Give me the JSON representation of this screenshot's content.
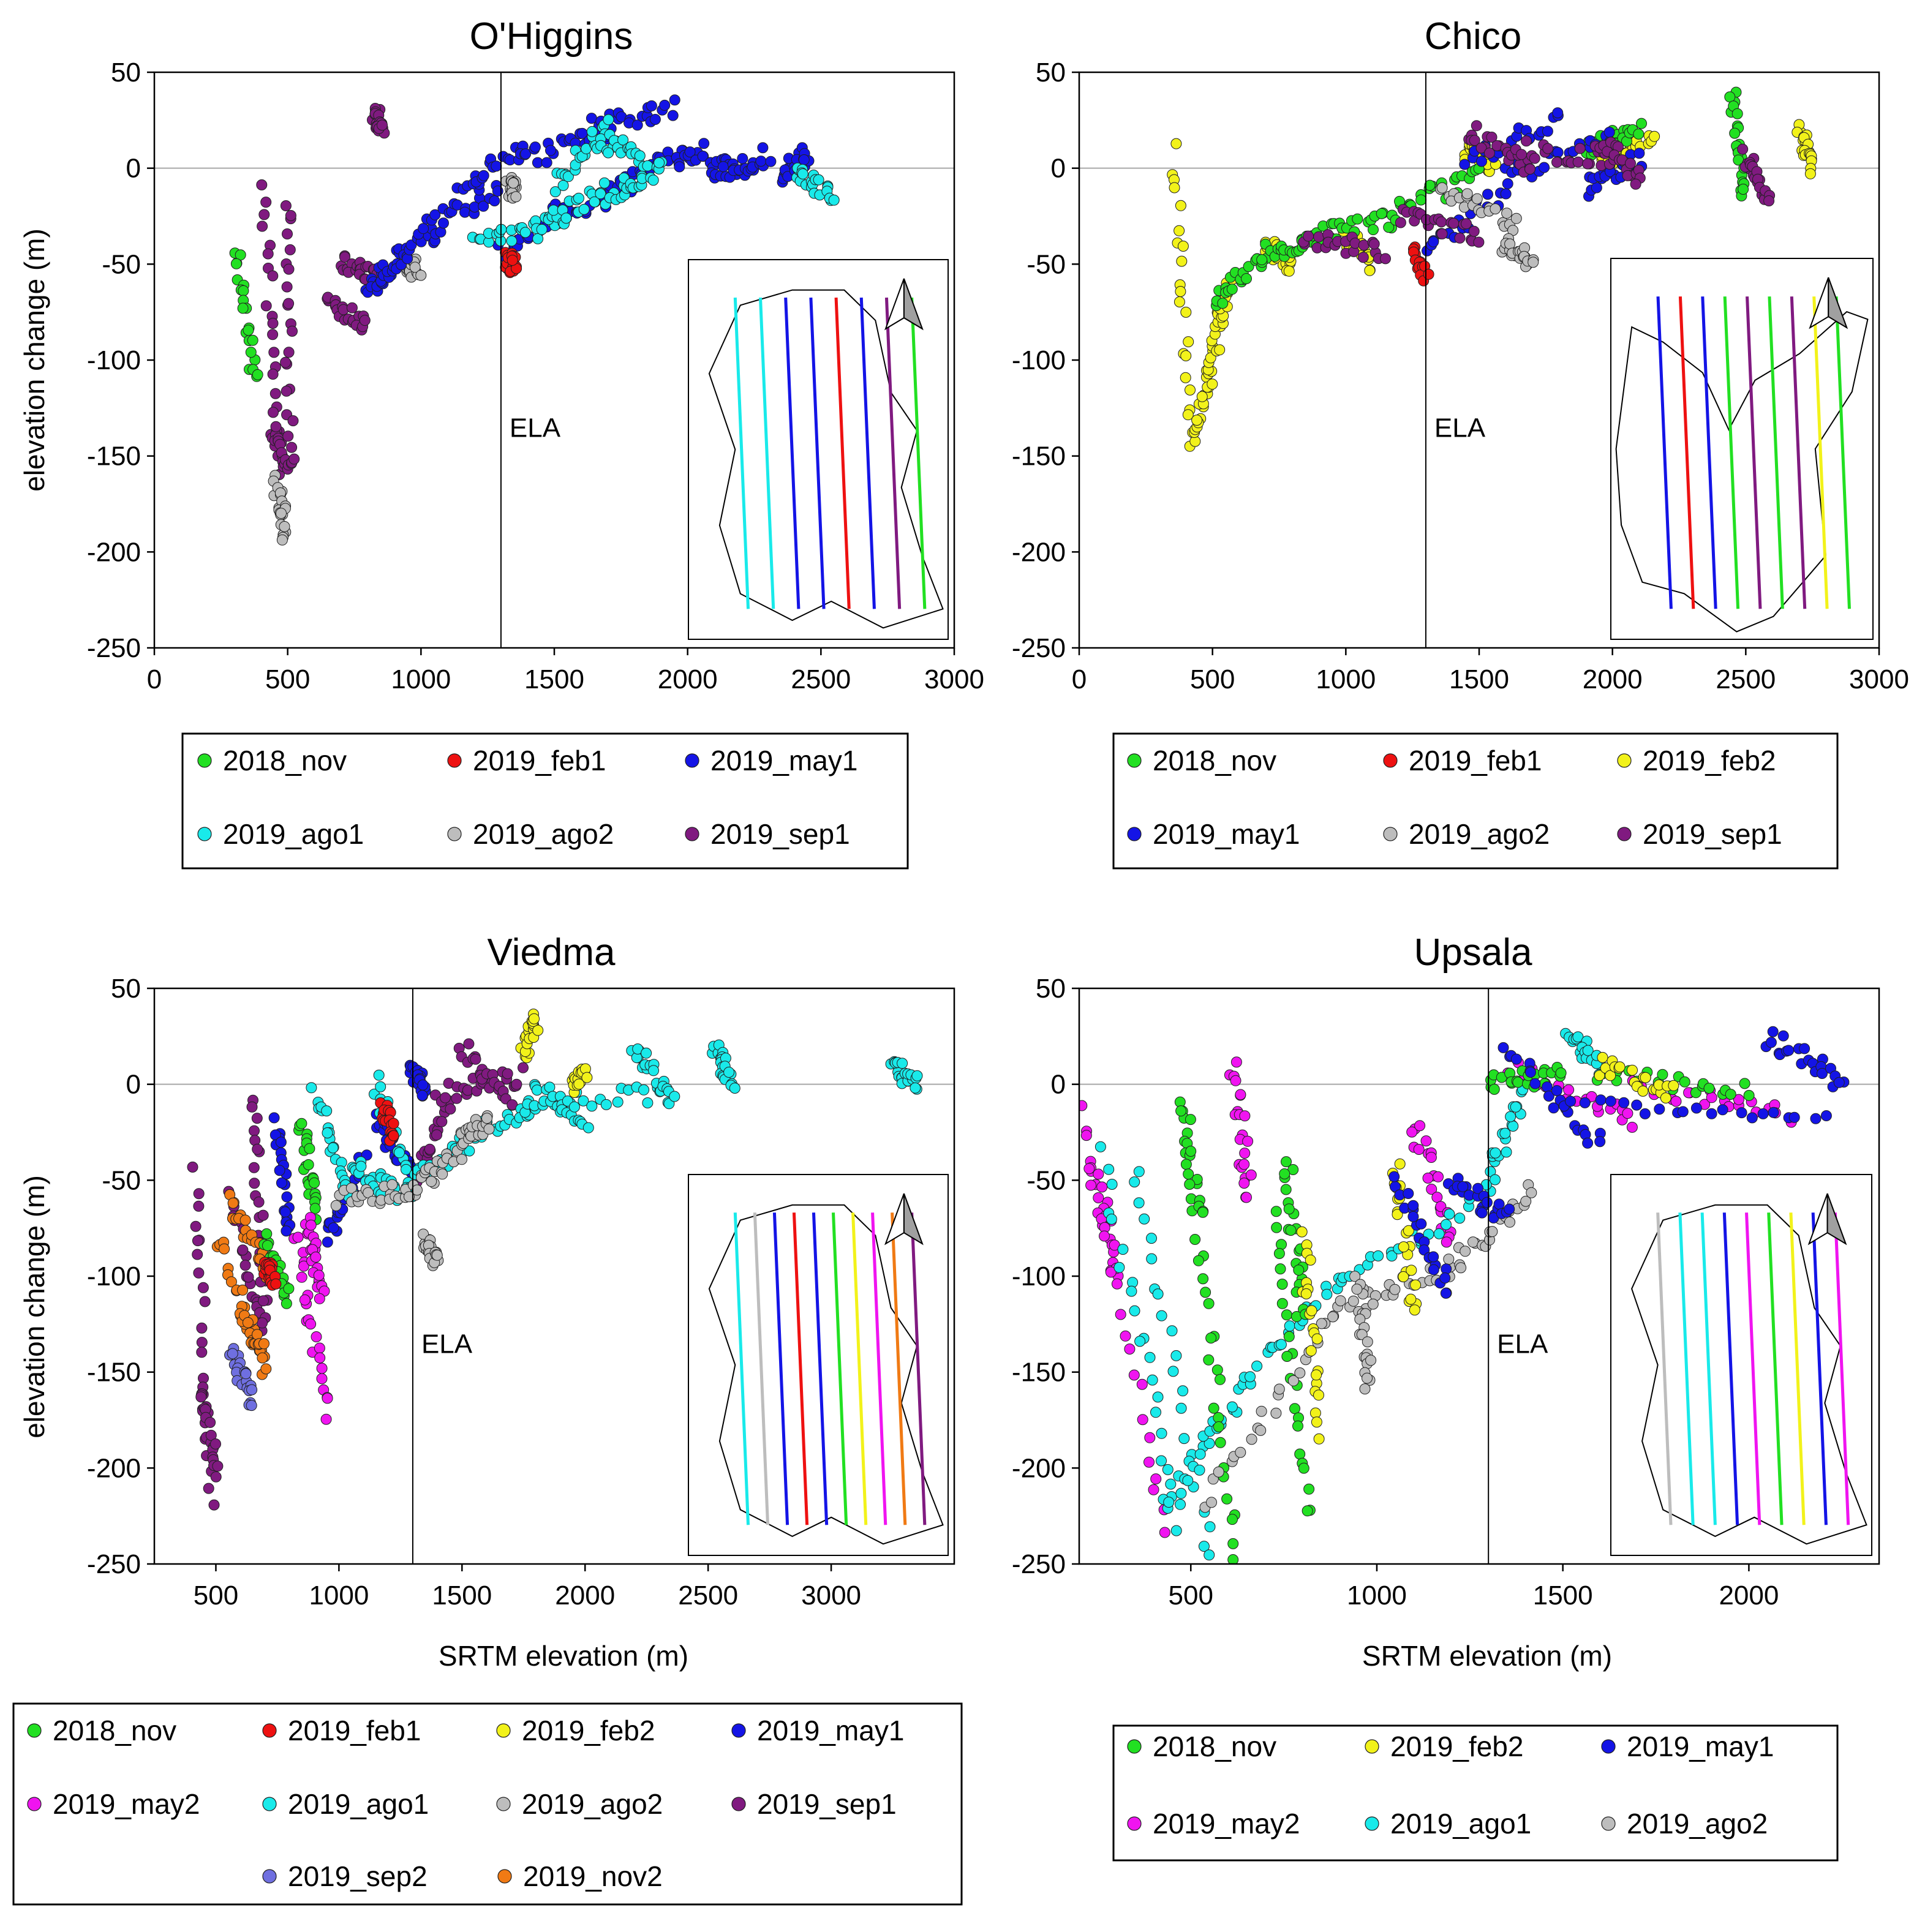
{
  "figure": {
    "ela_label": "ELA"
  },
  "colors": {
    "2018_nov": "#22e022",
    "2019_feb1": "#ee1111",
    "2019_feb2": "#f2f21a",
    "2019_may1": "#1414e6",
    "2019_may2": "#f014f0",
    "2019_ago1": "#19eaea",
    "2019_ago2": "#bdbdbd",
    "2019_sep1": "#801a80",
    "2019_sep2": "#6f6fe0",
    "2019_nov2": "#f07a14"
  },
  "chart_data": [
    {
      "type": "scatter",
      "title": "O'Higgins",
      "xlabel": "",
      "ylabel": "elevation change (m)",
      "xlim": [
        0,
        3000
      ],
      "ylim": [
        -250,
        50
      ],
      "xticks": [
        "0",
        "500",
        "1000",
        "1500",
        "2000",
        "2500",
        "3000"
      ],
      "yticks": [
        "50",
        "0",
        "-50",
        "-100",
        "-150",
        "-200",
        "-250"
      ],
      "ela": 1300,
      "legend": [
        "2018_nov",
        "2019_feb1",
        "2019_may1",
        "2019_ago1",
        "2019_ago2",
        "2019_sep1"
      ],
      "series": [
        {
          "name": "2018_nov",
          "segments": [
            [
              310,
              -42,
              380,
              -112
            ]
          ]
        },
        {
          "name": "2019_sep1",
          "segments": [
            [
              410,
              -10,
              470,
              -160
            ],
            [
              450,
              -135,
              510,
              -158
            ],
            [
              500,
              -15,
              510,
              -150
            ],
            [
              650,
              -70,
              790,
              -82
            ],
            [
              700,
              -48,
              840,
              -58
            ],
            [
              830,
              28,
              850,
              20
            ]
          ]
        },
        {
          "name": "2019_ago2",
          "segments": [
            [
              460,
              -165,
              490,
              -190
            ],
            [
              950,
              -50,
              990,
              -53
            ],
            [
              1330,
              -8,
              1360,
              -12
            ]
          ]
        },
        {
          "name": "2019_may1",
          "segments": [
            [
              800,
              -62,
              900,
              -52
            ],
            [
              900,
              -48,
              1060,
              -33
            ],
            [
              1000,
              -30,
              1300,
              -12
            ],
            [
              1150,
              -10,
              1400,
              12
            ],
            [
              1300,
              -45,
              1550,
              -18
            ],
            [
              1400,
              5,
              1700,
              20
            ],
            [
              1500,
              -28,
              1800,
              -8
            ],
            [
              1650,
              22,
              1950,
              32
            ],
            [
              1750,
              -5,
              2050,
              10
            ],
            [
              1950,
              6,
              2250,
              -3
            ],
            [
              2100,
              -5,
              2300,
              8
            ],
            [
              2350,
              -5,
              2450,
              8
            ]
          ]
        },
        {
          "name": "2019_ago1",
          "segments": [
            [
              1200,
              -38,
              1500,
              -28
            ],
            [
              1450,
              -32,
              1700,
              -10
            ],
            [
              1500,
              -8,
              1700,
              22
            ],
            [
              1650,
              15,
              1850,
              5
            ],
            [
              1700,
              -15,
              1900,
              0
            ],
            [
              2400,
              0,
              2550,
              -15
            ]
          ]
        },
        {
          "name": "2019_feb1",
          "segments": [
            [
              1330,
              -48,
              1350,
              -52
            ]
          ]
        }
      ],
      "map": {
        "orient": "tall",
        "lines": [
          "2019_ago1",
          "2019_ago1",
          "2019_may1",
          "2019_may1",
          "2019_feb1",
          "2019_may1",
          "2019_sep1",
          "2018_nov"
        ]
      }
    },
    {
      "type": "scatter",
      "title": "Chico",
      "xlabel": "",
      "ylabel": "",
      "xlim": [
        0,
        3000
      ],
      "ylim": [
        -250,
        50
      ],
      "xticks": [
        "0",
        "500",
        "1000",
        "1500",
        "2000",
        "2500",
        "3000"
      ],
      "yticks": [
        "50",
        "0",
        "-50",
        "-100",
        "-150",
        "-200",
        "-250"
      ],
      "ela": 1300,
      "legend": [
        "2018_nov",
        "2019_feb1",
        "2019_feb2",
        "2019_may1",
        "2019_ago2",
        "2019_sep1"
      ],
      "series": [
        {
          "name": "2019_feb2",
          "segments": [
            [
              360,
              8,
              420,
              -145
            ],
            [
              430,
              -140,
              500,
              -100
            ],
            [
              500,
              -100,
              560,
              -60
            ],
            [
              700,
              -40,
              800,
              -50
            ],
            [
              1000,
              -35,
              1100,
              -50
            ],
            [
              1450,
              10,
              1550,
              0
            ],
            [
              1950,
              5,
              2150,
              15
            ],
            [
              2700,
              20,
              2750,
              0
            ]
          ]
        },
        {
          "name": "2018_nov",
          "segments": [
            [
              510,
              -70,
              700,
              -45
            ],
            [
              700,
              -45,
              900,
              -35
            ],
            [
              900,
              -35,
              1200,
              -25
            ],
            [
              1200,
              -20,
              1500,
              -5
            ],
            [
              1900,
              10,
              2100,
              20
            ],
            [
              2450,
              40,
              2500,
              -15
            ]
          ]
        },
        {
          "name": "2019_may1",
          "segments": [
            [
              1300,
              -45,
              1600,
              -10
            ],
            [
              1450,
              5,
              1800,
              25
            ],
            [
              1600,
              -5,
              2000,
              15
            ],
            [
              1900,
              -10,
              2100,
              5
            ]
          ]
        },
        {
          "name": "2019_sep1",
          "segments": [
            [
              840,
              -35,
              1150,
              -45
            ],
            [
              1200,
              -25,
              1500,
              -35
            ],
            [
              1450,
              20,
              1700,
              0
            ],
            [
              1650,
              10,
              2000,
              5
            ],
            [
              1950,
              15,
              2100,
              -5
            ],
            [
              2500,
              5,
              2580,
              -15
            ]
          ]
        },
        {
          "name": "2019_ago2",
          "segments": [
            [
              1350,
              -10,
              1650,
              -30
            ],
            [
              1600,
              -40,
              1700,
              -48
            ]
          ]
        },
        {
          "name": "2019_feb1",
          "segments": [
            [
              1250,
              -45,
              1300,
              -55
            ]
          ]
        }
      ],
      "map": {
        "orient": "wide",
        "lines": [
          "2019_may1",
          "2019_feb1",
          "2019_may1",
          "2018_nov",
          "2019_sep1",
          "2018_nov",
          "2019_sep1",
          "2019_feb2",
          "2018_nov"
        ]
      }
    },
    {
      "type": "scatter",
      "title": "Viedma",
      "xlabel": "SRTM elevation (m)",
      "ylabel": "elevation change (m)",
      "xlim": [
        250,
        3500
      ],
      "ylim": [
        -250,
        50
      ],
      "xticks": [
        "500",
        "1000",
        "1500",
        "2000",
        "2500",
        "3000"
      ],
      "yticks": [
        "50",
        "0",
        "-50",
        "-100",
        "-150",
        "-200",
        "-250"
      ],
      "ela": 1300,
      "legend": [
        "2018_nov",
        "2019_feb1",
        "2019_feb2",
        "2019_may1",
        "2019_may2",
        "2019_ago1",
        "2019_ago2",
        "2019_sep1",
        "2019_sep2",
        "2019_nov2"
      ],
      "series": [
        {
          "name": "2019_sep1",
          "segments": [
            [
              420,
              -45,
              480,
              -215
            ],
            [
              440,
              -160,
              500,
              -200
            ],
            [
              560,
              -60,
              700,
              -130
            ],
            [
              650,
              -5,
              700,
              -120
            ],
            [
              1300,
              -50,
              1450,
              -10
            ],
            [
              1400,
              -5,
              1750,
              5
            ],
            [
              1500,
              20,
              1700,
              -10
            ]
          ]
        },
        {
          "name": "2019_nov2",
          "segments": [
            [
              520,
              -80,
              700,
              -150
            ],
            [
              560,
              -60,
              720,
              -100
            ],
            [
              600,
              -120,
              700,
              -140
            ]
          ]
        },
        {
          "name": "2019_sep2",
          "segments": [
            [
              570,
              -140,
              650,
              -165
            ]
          ]
        },
        {
          "name": "2019_may1",
          "segments": [
            [
              750,
              -20,
              800,
              -80
            ],
            [
              950,
              -80,
              1100,
              -40
            ],
            [
              1150,
              -20,
              1300,
              -45
            ],
            [
              1300,
              10,
              1350,
              -5
            ]
          ]
        },
        {
          "name": "2018_nov",
          "segments": [
            [
              850,
              -20,
              900,
              -70
            ],
            [
              700,
              -80,
              800,
              -110
            ]
          ]
        },
        {
          "name": "2019_may2",
          "segments": [
            [
              830,
              -80,
              950,
              -170
            ],
            [
              870,
              -70,
              930,
              -110
            ]
          ]
        },
        {
          "name": "2019_ago1",
          "segments": [
            [
              900,
              -5,
              1050,
              -60
            ],
            [
              1050,
              -40,
              1250,
              -60
            ],
            [
              1150,
              0,
              1300,
              -55
            ],
            [
              1300,
              -50,
              1600,
              -25
            ],
            [
              1500,
              -30,
              1800,
              -10
            ],
            [
              1750,
              -10,
              2350,
              -5
            ],
            [
              1800,
              0,
              2000,
              -20
            ],
            [
              2200,
              20,
              2350,
              -10
            ],
            [
              2530,
              20,
              2600,
              0
            ],
            [
              3250,
              10,
              3350,
              0
            ]
          ]
        },
        {
          "name": "2019_ago2",
          "segments": [
            [
              1000,
              -60,
              1300,
              -55
            ],
            [
              1300,
              -55,
              1500,
              -35
            ],
            [
              1500,
              -30,
              1600,
              -20
            ],
            [
              1350,
              -80,
              1400,
              -93
            ]
          ]
        },
        {
          "name": "2019_feb1",
          "segments": [
            [
              1180,
              -10,
              1220,
              -30
            ],
            [
              700,
              -95,
              740,
              -100
            ]
          ]
        },
        {
          "name": "2019_feb2",
          "segments": [
            [
              1750,
              15,
              1800,
              35
            ],
            [
              1950,
              0,
              2000,
              5
            ]
          ]
        }
      ],
      "map": {
        "orient": "tall",
        "lines": [
          "2019_ago1",
          "2019_ago2",
          "2019_may1",
          "2019_feb1",
          "2019_may1",
          "2018_nov",
          "2019_feb2",
          "2019_may2",
          "2019_nov2",
          "2019_sep1"
        ]
      }
    },
    {
      "type": "scatter",
      "title": "Upsala",
      "xlabel": "SRTM elevation (m)",
      "ylabel": "",
      "xlim": [
        200,
        2350
      ],
      "ylim": [
        -250,
        50
      ],
      "xticks": [
        "500",
        "1000",
        "1500",
        "2000"
      ],
      "yticks": [
        "50",
        "0",
        "-50",
        "-100",
        "-150",
        "-200",
        "-250"
      ],
      "ela": 1300,
      "legend": [
        "2018_nov",
        "2019_feb2",
        "2019_may1",
        "2019_may2",
        "2019_ago1",
        "2019_ago2"
      ],
      "series": [
        {
          "name": "2019_may2",
          "segments": [
            [
              210,
              -10,
              430,
              -235
            ],
            [
              230,
              -40,
              300,
              -100
            ],
            [
              610,
              8,
              660,
              -60
            ],
            [
              1100,
              -20,
              1200,
              -80
            ],
            [
              1350,
              10,
              1700,
              -20
            ],
            [
              1700,
              0,
              2100,
              -15
            ]
          ]
        },
        {
          "name": "2019_ago1",
          "segments": [
            [
              260,
              -35,
              470,
              -230
            ],
            [
              350,
              -45,
              560,
              -250
            ],
            [
              430,
              -220,
              620,
              -165
            ],
            [
              620,
              -160,
              900,
              -100
            ],
            [
              900,
              -100,
              1300,
              -60
            ],
            [
              1300,
              -50,
              1400,
              0
            ],
            [
              1520,
              25,
              1600,
              10
            ]
          ]
        },
        {
          "name": "2018_nov",
          "segments": [
            [
              480,
              -10,
              520,
              -70
            ],
            [
              520,
              -80,
              620,
              -245
            ],
            [
              720,
              -70,
              820,
              -225
            ],
            [
              760,
              -40,
              800,
              -120
            ],
            [
              1300,
              0,
              1500,
              5
            ],
            [
              1600,
              5,
              2000,
              -5
            ]
          ]
        },
        {
          "name": "2019_ago2",
          "segments": [
            [
              540,
              -220,
              880,
              -120
            ],
            [
              880,
              -120,
              1200,
              -95
            ],
            [
              1200,
              -95,
              1420,
              -55
            ],
            [
              950,
              -100,
              980,
              -160
            ]
          ]
        },
        {
          "name": "2019_feb2",
          "segments": [
            [
              800,
              -80,
              850,
              -180
            ],
            [
              1050,
              -40,
              1100,
              -120
            ],
            [
              1600,
              10,
              1800,
              -5
            ]
          ]
        },
        {
          "name": "2019_may1",
          "segments": [
            [
              1050,
              -50,
              1200,
              -110
            ],
            [
              1200,
              -50,
              1350,
              -70
            ],
            [
              1350,
              15,
              1600,
              -30
            ],
            [
              1500,
              -10,
              2200,
              -20
            ],
            [
              2050,
              25,
              2250,
              0
            ]
          ]
        }
      ],
      "map": {
        "orient": "tall",
        "lines": [
          "2019_ago2",
          "2019_ago1",
          "2019_ago1",
          "2019_may1",
          "2019_may2",
          "2018_nov",
          "2019_feb2",
          "2019_may1",
          "2019_may2"
        ]
      }
    }
  ]
}
